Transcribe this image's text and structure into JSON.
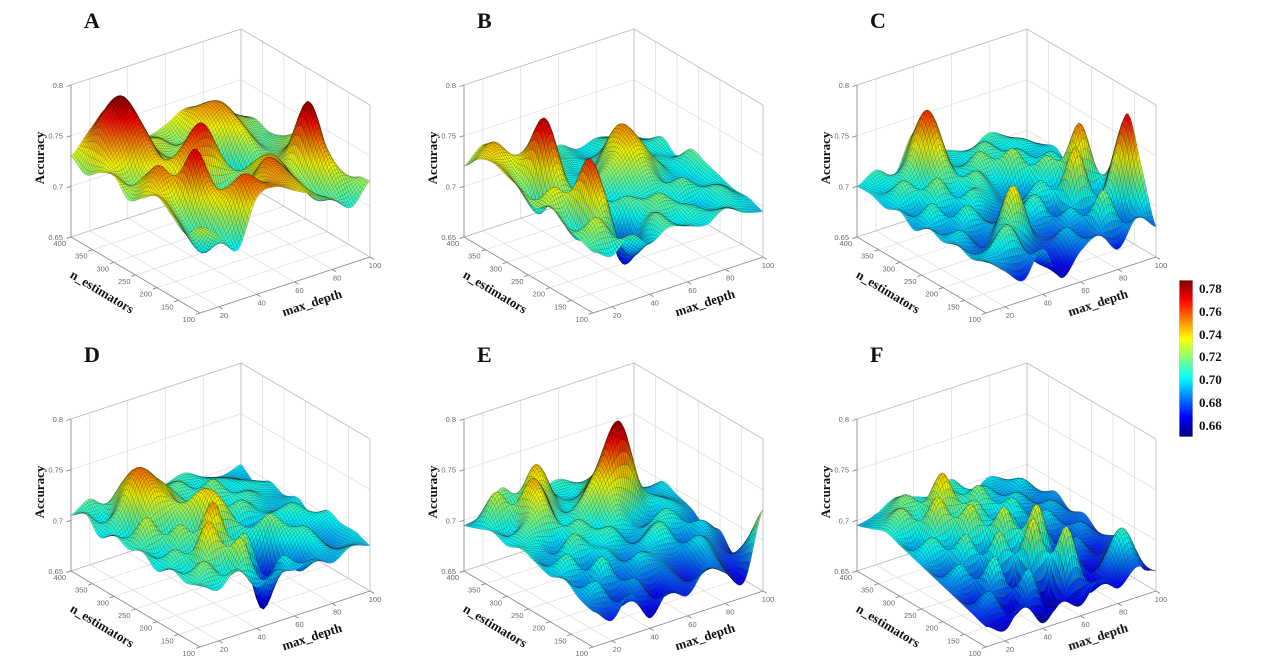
{
  "figure": {
    "background": "#ffffff",
    "colormap": "jet",
    "grid_color": "#dcdcdc",
    "axis_color": "#8a8a8a",
    "tick_text_color": "#696969"
  },
  "axes": {
    "xlabel": "max_depth",
    "ylabel": "n_estimators",
    "zlabel": "Accuracy",
    "x_range": [
      10,
      100
    ],
    "y_range": [
      100,
      400
    ],
    "z_range": [
      0.65,
      0.8
    ],
    "x_ticks": [
      "20",
      "40",
      "60",
      "80",
      "100"
    ],
    "y_ticks": [
      "100",
      "150",
      "200",
      "250",
      "300",
      "350",
      "400"
    ],
    "z_ticks": [
      "0.65",
      "0.7",
      "0.75",
      "0.8"
    ]
  },
  "colorbar": {
    "ticks": [
      "0.78",
      "0.76",
      "0.74",
      "0.72",
      "0.70",
      "0.68",
      "0.66"
    ],
    "vmin": 0.65,
    "vmax": 0.788,
    "colors_low_to_high": [
      "#000080",
      "#0000ff",
      "#00ffff",
      "#80ff80",
      "#ffff00",
      "#ff0000",
      "#800000"
    ]
  },
  "chart_data": [
    {
      "label": "A",
      "type": "surface",
      "x_name": "max_depth",
      "x_values": [
        10,
        20,
        30,
        40,
        50,
        60,
        70,
        80,
        90,
        100
      ],
      "y_name": "n_estimators",
      "y_values": [
        100,
        133,
        167,
        200,
        233,
        267,
        300,
        333,
        367,
        400
      ],
      "z_name": "Accuracy",
      "z_grid": [
        [
          0.735,
          0.72,
          0.7,
          0.745,
          0.75,
          0.74,
          0.73,
          0.72,
          0.705,
          0.725
        ],
        [
          0.72,
          0.695,
          0.73,
          0.76,
          0.745,
          0.75,
          0.735,
          0.71,
          0.73,
          0.72
        ],
        [
          0.73,
          0.71,
          0.745,
          0.73,
          0.72,
          0.755,
          0.74,
          0.72,
          0.755,
          0.69
        ],
        [
          0.74,
          0.73,
          0.775,
          0.71,
          0.7,
          0.73,
          0.745,
          0.73,
          0.785,
          0.715
        ],
        [
          0.73,
          0.755,
          0.72,
          0.73,
          0.71,
          0.72,
          0.73,
          0.72,
          0.74,
          0.725
        ],
        [
          0.72,
          0.74,
          0.73,
          0.755,
          0.77,
          0.73,
          0.7,
          0.71,
          0.72,
          0.73
        ],
        [
          0.735,
          0.72,
          0.745,
          0.73,
          0.74,
          0.72,
          0.695,
          0.73,
          0.715,
          0.72
        ],
        [
          0.73,
          0.75,
          0.77,
          0.735,
          0.72,
          0.735,
          0.73,
          0.745,
          0.72,
          0.715
        ],
        [
          0.72,
          0.77,
          0.785,
          0.74,
          0.73,
          0.72,
          0.745,
          0.75,
          0.73,
          0.72
        ],
        [
          0.73,
          0.75,
          0.765,
          0.735,
          0.725,
          0.73,
          0.74,
          0.735,
          0.725,
          0.715
        ]
      ]
    },
    {
      "label": "B",
      "type": "surface",
      "x_name": "max_depth",
      "x_values": [
        10,
        20,
        30,
        40,
        50,
        60,
        70,
        80,
        90,
        100
      ],
      "y_name": "n_estimators",
      "y_values": [
        100,
        133,
        167,
        200,
        233,
        267,
        300,
        333,
        367,
        400
      ],
      "z_name": "Accuracy",
      "z_grid": [
        [
          0.71,
          0.7,
          0.715,
          0.7,
          0.71,
          0.705,
          0.7,
          0.71,
          0.7,
          0.695
        ],
        [
          0.715,
          0.73,
          0.7,
          0.68,
          0.715,
          0.7,
          0.71,
          0.7,
          0.705,
          0.7
        ],
        [
          0.72,
          0.7,
          0.745,
          0.665,
          0.7,
          0.72,
          0.705,
          0.695,
          0.71,
          0.7
        ],
        [
          0.73,
          0.71,
          0.765,
          0.7,
          0.715,
          0.705,
          0.7,
          0.715,
          0.7,
          0.705
        ],
        [
          0.72,
          0.735,
          0.71,
          0.72,
          0.7,
          0.71,
          0.72,
          0.7,
          0.695,
          0.71
        ],
        [
          0.73,
          0.7,
          0.735,
          0.705,
          0.715,
          0.73,
          0.745,
          0.72,
          0.7,
          0.715
        ],
        [
          0.735,
          0.72,
          0.78,
          0.71,
          0.7,
          0.72,
          0.75,
          0.71,
          0.705,
          0.7
        ],
        [
          0.74,
          0.73,
          0.745,
          0.715,
          0.705,
          0.7,
          0.72,
          0.7,
          0.7,
          0.71
        ],
        [
          0.735,
          0.745,
          0.715,
          0.7,
          0.71,
          0.705,
          0.7,
          0.71,
          0.705,
          0.7
        ],
        [
          0.72,
          0.735,
          0.725,
          0.705,
          0.7,
          0.71,
          0.7,
          0.705,
          0.7,
          0.695
        ]
      ]
    },
    {
      "label": "C",
      "type": "surface",
      "x_name": "max_depth",
      "x_values": [
        10,
        20,
        30,
        40,
        50,
        60,
        70,
        80,
        90,
        100
      ],
      "y_name": "n_estimators",
      "y_values": [
        100,
        133,
        167,
        200,
        233,
        267,
        300,
        333,
        367,
        400
      ],
      "z_name": "Accuracy",
      "z_grid": [
        [
          0.7,
          0.685,
          0.67,
          0.695,
          0.66,
          0.68,
          0.69,
          0.67,
          0.695,
          0.68
        ],
        [
          0.695,
          0.7,
          0.715,
          0.68,
          0.67,
          0.695,
          0.68,
          0.72,
          0.68,
          0.73
        ],
        [
          0.7,
          0.68,
          0.695,
          0.74,
          0.69,
          0.68,
          0.7,
          0.68,
          0.71,
          0.775
        ],
        [
          0.695,
          0.7,
          0.68,
          0.7,
          0.695,
          0.71,
          0.68,
          0.745,
          0.69,
          0.72
        ],
        [
          0.7,
          0.685,
          0.71,
          0.69,
          0.68,
          0.695,
          0.71,
          0.69,
          0.755,
          0.685
        ],
        [
          0.69,
          0.71,
          0.685,
          0.71,
          0.7,
          0.685,
          0.69,
          0.72,
          0.7,
          0.71
        ],
        [
          0.7,
          0.69,
          0.72,
          0.695,
          0.715,
          0.7,
          0.725,
          0.695,
          0.71,
          0.69
        ],
        [
          0.695,
          0.715,
          0.7,
          0.73,
          0.7,
          0.72,
          0.7,
          0.71,
          0.695,
          0.7
        ],
        [
          0.7,
          0.7,
          0.72,
          0.765,
          0.71,
          0.7,
          0.715,
          0.7,
          0.705,
          0.695
        ],
        [
          0.7,
          0.71,
          0.7,
          0.735,
          0.715,
          0.705,
          0.7,
          0.71,
          0.7,
          0.69
        ]
      ]
    },
    {
      "label": "D",
      "type": "surface",
      "x_name": "max_depth",
      "x_values": [
        10,
        20,
        30,
        40,
        50,
        60,
        70,
        80,
        90,
        100
      ],
      "y_name": "n_estimators",
      "y_values": [
        100,
        133,
        167,
        200,
        233,
        267,
        300,
        333,
        367,
        400
      ],
      "z_name": "Accuracy",
      "z_grid": [
        [
          0.71,
          0.7,
          0.715,
          0.69,
          0.7,
          0.695,
          0.7,
          0.69,
          0.7,
          0.695
        ],
        [
          0.705,
          0.72,
          0.7,
          0.73,
          0.655,
          0.7,
          0.68,
          0.7,
          0.69,
          0.7
        ],
        [
          0.71,
          0.7,
          0.745,
          0.7,
          0.72,
          0.66,
          0.7,
          0.71,
          0.69,
          0.7
        ],
        [
          0.7,
          0.715,
          0.7,
          0.75,
          0.68,
          0.7,
          0.72,
          0.69,
          0.7,
          0.705
        ],
        [
          0.71,
          0.7,
          0.725,
          0.7,
          0.735,
          0.71,
          0.68,
          0.7,
          0.71,
          0.69
        ],
        [
          0.705,
          0.73,
          0.7,
          0.72,
          0.74,
          0.7,
          0.715,
          0.7,
          0.695,
          0.7
        ],
        [
          0.71,
          0.7,
          0.74,
          0.73,
          0.71,
          0.72,
          0.7,
          0.71,
          0.7,
          0.695
        ],
        [
          0.7,
          0.72,
          0.755,
          0.74,
          0.72,
          0.7,
          0.72,
          0.7,
          0.705,
          0.7
        ],
        [
          0.715,
          0.7,
          0.735,
          0.72,
          0.705,
          0.715,
          0.7,
          0.705,
          0.7,
          0.69
        ],
        [
          0.705,
          0.715,
          0.7,
          0.71,
          0.7,
          0.705,
          0.71,
          0.7,
          0.695,
          0.7
        ]
      ]
    },
    {
      "label": "E",
      "type": "surface",
      "x_name": "max_depth",
      "x_values": [
        10,
        20,
        30,
        40,
        50,
        60,
        70,
        80,
        90,
        100
      ],
      "y_name": "n_estimators",
      "y_values": [
        100,
        133,
        167,
        200,
        233,
        267,
        300,
        333,
        367,
        400
      ],
      "z_name": "Accuracy",
      "z_grid": [
        [
          0.685,
          0.67,
          0.69,
          0.66,
          0.68,
          0.67,
          0.69,
          0.68,
          0.665,
          0.73
        ],
        [
          0.69,
          0.7,
          0.67,
          0.69,
          0.665,
          0.68,
          0.67,
          0.69,
          0.67,
          0.695
        ],
        [
          0.7,
          0.68,
          0.71,
          0.68,
          0.7,
          0.69,
          0.68,
          0.7,
          0.685,
          0.67
        ],
        [
          0.695,
          0.71,
          0.68,
          0.7,
          0.685,
          0.7,
          0.71,
          0.68,
          0.7,
          0.685
        ],
        [
          0.7,
          0.69,
          0.715,
          0.7,
          0.71,
          0.69,
          0.7,
          0.71,
          0.69,
          0.68
        ],
        [
          0.705,
          0.7,
          0.69,
          0.715,
          0.7,
          0.72,
          0.7,
          0.69,
          0.7,
          0.69
        ],
        [
          0.7,
          0.715,
          0.73,
          0.7,
          0.72,
          0.75,
          0.785,
          0.72,
          0.7,
          0.695
        ],
        [
          0.705,
          0.7,
          0.745,
          0.72,
          0.7,
          0.72,
          0.74,
          0.7,
          0.69,
          0.7
        ],
        [
          0.7,
          0.73,
          0.7,
          0.745,
          0.71,
          0.7,
          0.715,
          0.7,
          0.695,
          0.685
        ],
        [
          0.695,
          0.7,
          0.72,
          0.7,
          0.705,
          0.71,
          0.7,
          0.695,
          0.69,
          0.68
        ]
      ]
    },
    {
      "label": "F",
      "type": "surface",
      "x_name": "max_depth",
      "x_values": [
        10,
        20,
        30,
        40,
        50,
        60,
        70,
        80,
        90,
        100
      ],
      "y_name": "n_estimators",
      "y_values": [
        100,
        133,
        167,
        200,
        233,
        267,
        300,
        333,
        367,
        400
      ],
      "z_name": "Accuracy",
      "z_grid": [
        [
          0.67,
          0.66,
          0.68,
          0.655,
          0.67,
          0.66,
          0.68,
          0.665,
          0.68,
          0.67
        ],
        [
          0.675,
          0.69,
          0.66,
          0.7,
          0.655,
          0.73,
          0.66,
          0.68,
          0.71,
          0.665
        ],
        [
          0.68,
          0.67,
          0.71,
          0.655,
          0.735,
          0.67,
          0.69,
          0.665,
          0.68,
          0.69
        ],
        [
          0.685,
          0.7,
          0.67,
          0.72,
          0.68,
          0.735,
          0.66,
          0.69,
          0.67,
          0.68
        ],
        [
          0.69,
          0.68,
          0.715,
          0.68,
          0.73,
          0.68,
          0.7,
          0.67,
          0.69,
          0.675
        ],
        [
          0.695,
          0.71,
          0.69,
          0.73,
          0.69,
          0.71,
          0.68,
          0.7,
          0.68,
          0.685
        ],
        [
          0.7,
          0.69,
          0.735,
          0.7,
          0.72,
          0.69,
          0.71,
          0.68,
          0.695,
          0.68
        ],
        [
          0.705,
          0.72,
          0.7,
          0.745,
          0.7,
          0.72,
          0.69,
          0.7,
          0.685,
          0.69
        ],
        [
          0.7,
          0.71,
          0.72,
          0.7,
          0.715,
          0.7,
          0.705,
          0.69,
          0.7,
          0.68
        ],
        [
          0.695,
          0.7,
          0.71,
          0.705,
          0.7,
          0.71,
          0.69,
          0.7,
          0.69,
          0.675
        ]
      ]
    }
  ]
}
